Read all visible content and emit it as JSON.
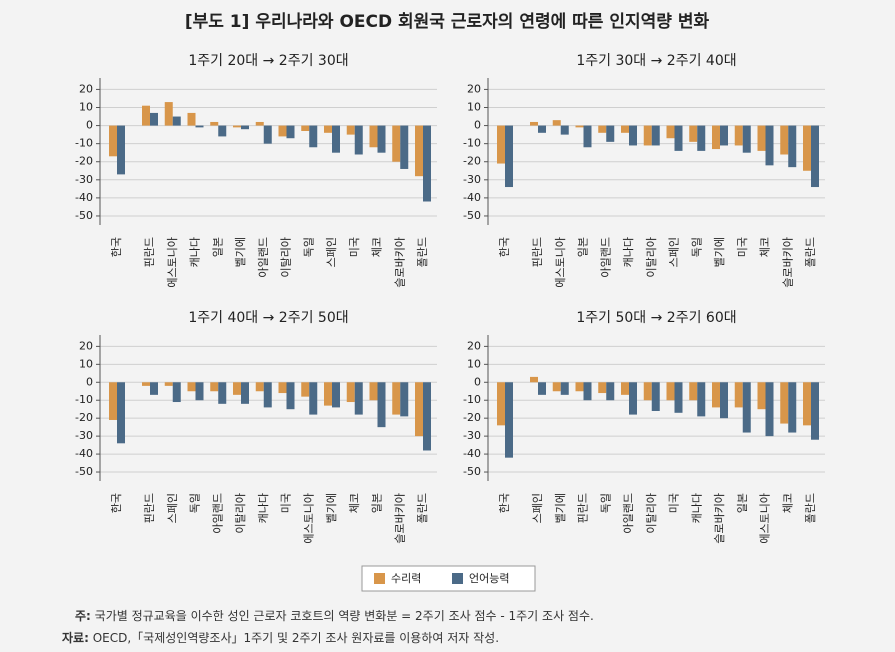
{
  "title": "[부도 1] 우리나라와 OECD 회원국 근로자의 연령에 따른 인지역량 변화",
  "legend": [
    {
      "name": "수리력",
      "color": "#d8964a"
    },
    {
      "name": "언어능력",
      "color": "#4b6a87"
    }
  ],
  "chart_data": [
    {
      "type": "bar",
      "title": "1주기 20대 → 2주기 30대",
      "categories": [
        "한국",
        "핀란드",
        "에스토니아",
        "캐나다",
        "일본",
        "벨기에",
        "아일랜드",
        "이탈리아",
        "독일",
        "스페인",
        "미국",
        "체코",
        "슬로바키아",
        "폴란드"
      ],
      "series": [
        {
          "values": [
            -17,
            11,
            13,
            7,
            2,
            -1,
            2,
            -6,
            -3,
            -4,
            -5,
            -12,
            -20,
            -28
          ]
        },
        {
          "values": [
            -27,
            7,
            5,
            -1,
            -6,
            -2,
            -10,
            -7,
            -12,
            -15,
            -16,
            -15,
            -24,
            -42
          ]
        }
      ],
      "ylim": [
        -55,
        23
      ],
      "yticks": [
        20,
        10,
        0,
        -10,
        -20,
        -30,
        -40,
        -50
      ],
      "grid": true
    },
    {
      "type": "bar",
      "title": "1주기 30대 → 2주기 40대",
      "categories": [
        "한국",
        "핀란드",
        "에스토니아",
        "일본",
        "아일랜드",
        "캐나다",
        "이탈리아",
        "스페인",
        "독일",
        "벨기에",
        "미국",
        "체코",
        "슬로바키아",
        "폴란드"
      ],
      "series": [
        {
          "values": [
            -21,
            2,
            3,
            -1,
            -4,
            -4,
            -11,
            -7,
            -9,
            -13,
            -11,
            -14,
            -16,
            -25
          ]
        },
        {
          "values": [
            -34,
            -4,
            -5,
            -12,
            -9,
            -11,
            -11,
            -14,
            -14,
            -11,
            -15,
            -22,
            -23,
            -34
          ]
        }
      ],
      "ylim": [
        -55,
        23
      ],
      "yticks": [
        20,
        10,
        0,
        -10,
        -20,
        -30,
        -40,
        -50
      ],
      "grid": true
    },
    {
      "type": "bar",
      "title": "1주기 40대 → 2주기 50대",
      "categories": [
        "한국",
        "핀란드",
        "스페인",
        "독일",
        "아일랜드",
        "이탈리아",
        "캐나다",
        "미국",
        "에스토니아",
        "벨기에",
        "체코",
        "일본",
        "슬로바키아",
        "폴란드"
      ],
      "series": [
        {
          "values": [
            -21,
            -2,
            -2,
            -5,
            -5,
            -7,
            -5,
            -6,
            -8,
            -13,
            -11,
            -10,
            -18,
            -30
          ]
        },
        {
          "values": [
            -34,
            -7,
            -11,
            -10,
            -12,
            -12,
            -14,
            -15,
            -18,
            -14,
            -18,
            -25,
            -19,
            -38
          ]
        }
      ],
      "ylim": [
        -55,
        23
      ],
      "yticks": [
        20,
        10,
        0,
        -10,
        -20,
        -30,
        -40,
        -50
      ],
      "grid": true
    },
    {
      "type": "bar",
      "title": "1주기 50대 → 2주기 60대",
      "categories": [
        "한국",
        "스페인",
        "벨기에",
        "핀란드",
        "독일",
        "아일랜드",
        "이탈리아",
        "미국",
        "캐나다",
        "슬로바키아",
        "일본",
        "에스토니아",
        "체코",
        "폴란드"
      ],
      "series": [
        {
          "values": [
            -24,
            3,
            -5,
            -5,
            -6,
            -7,
            -10,
            -10,
            -10,
            -14,
            -14,
            -15,
            -23,
            -24
          ]
        },
        {
          "values": [
            -42,
            -7,
            -7,
            -10,
            -10,
            -18,
            -16,
            -17,
            -19,
            -20,
            -28,
            -30,
            -28,
            -32
          ]
        }
      ],
      "ylim": [
        -55,
        23
      ],
      "yticks": [
        20,
        10,
        0,
        -10,
        -20,
        -30,
        -40,
        -50
      ],
      "grid": true
    }
  ],
  "notes": [
    {
      "label": "주:",
      "text": " 국가별 정규교육을 이수한 성인 근로자 코호트의 역량 변화분 = 2주기 조사 점수 - 1주기 조사 점수."
    },
    {
      "label": "자료:",
      "text": " OECD,「국제성인역량조사」1주기 및 2주기 조사 원자료를 이용하여 저자 작성."
    }
  ]
}
